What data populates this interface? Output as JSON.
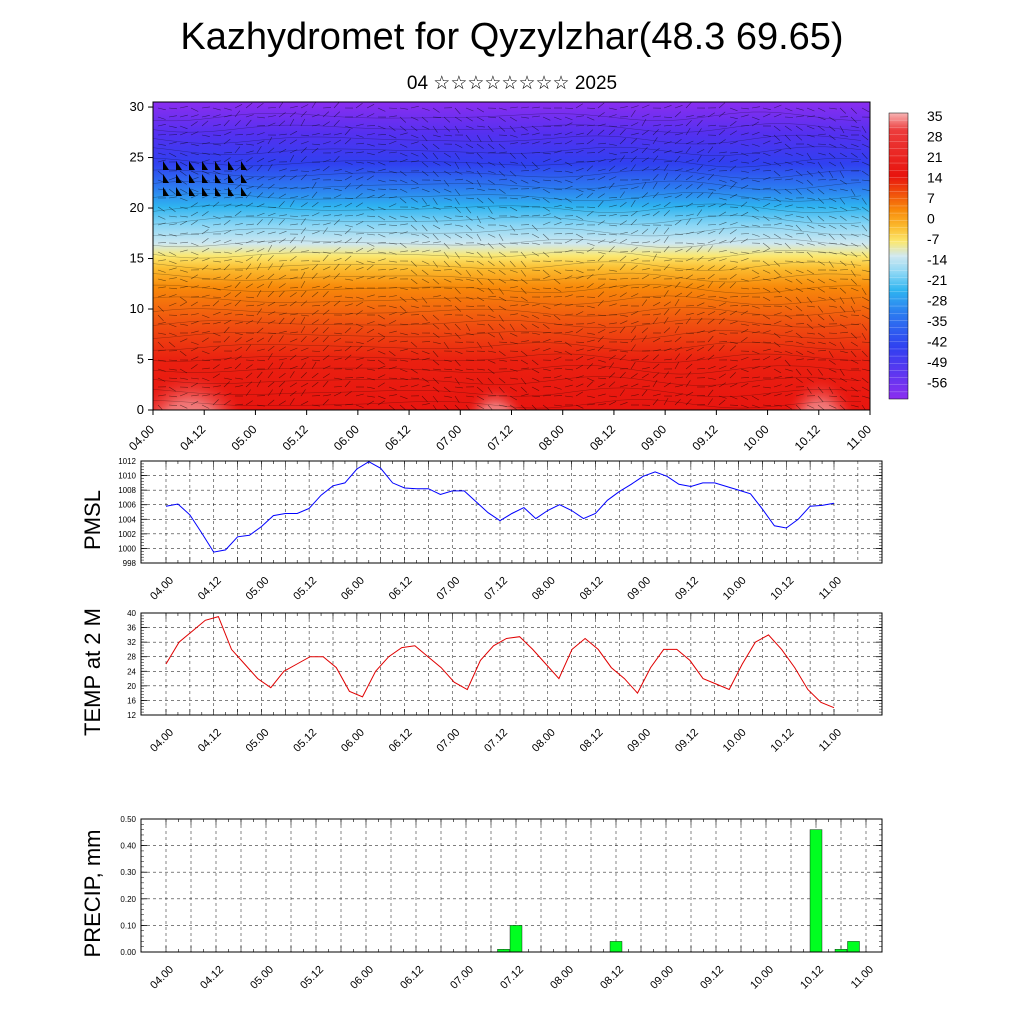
{
  "title": "Kazhydromet for Qyzylzhar(48.3 69.65)",
  "subtitle": "04 ☆☆☆☆☆☆☆☆ 2025",
  "time_ticks": [
    "04.00",
    "04.12",
    "05.00",
    "05.12",
    "06.00",
    "06.12",
    "07.00",
    "07.12",
    "08.00",
    "08.12",
    "09.00",
    "09.12",
    "10.00",
    "10.12",
    "11.00"
  ],
  "chart_data": [
    {
      "type": "heatmap",
      "name": "temperature cross-section with wind barbs",
      "xticks": [
        "04.00",
        "04.12",
        "05.00",
        "05.12",
        "06.00",
        "06.12",
        "07.00",
        "07.12",
        "08.00",
        "08.12",
        "09.00",
        "09.12",
        "10.00",
        "10.12",
        "11.00"
      ],
      "yticks": [
        0,
        5,
        10,
        15,
        20,
        25,
        30
      ],
      "ylim": [
        0,
        30.5
      ],
      "colorbar_labels": [
        "35",
        "28",
        "21",
        "14",
        "7",
        "0",
        "-7",
        "-14",
        "-21",
        "-28",
        "-35",
        "-42",
        "-49",
        "-56"
      ],
      "colors": {
        "hot": "#f7b5b5",
        "red": "#e8140e",
        "orange": "#f88a0a",
        "yellow": "#fbe870",
        "cyan": "#2fb4f0",
        "blue": "#3040f0",
        "violet": "#8b2ef0"
      }
    },
    {
      "type": "line",
      "ylabel": "PMSL",
      "ylim": [
        998,
        1012
      ],
      "yticks": [
        "998",
        "1000",
        "1002",
        "1004",
        "1006",
        "1008",
        "1010",
        "1012"
      ],
      "color": "#0000ff",
      "values": [
        1005.8,
        1006.1,
        1004.6,
        1002.1,
        999.5,
        999.8,
        1001.6,
        1001.8,
        1003.0,
        1004.5,
        1004.8,
        1004.8,
        1005.5,
        1007.3,
        1008.6,
        1009.0,
        1010.9,
        1011.9,
        1011.0,
        1009.0,
        1008.3,
        1008.2,
        1008.2,
        1007.4,
        1007.9,
        1007.9,
        1006.4,
        1004.9,
        1003.8,
        1004.8,
        1005.6,
        1004.1,
        1005.2,
        1006.0,
        1005.2,
        1004.1,
        1004.8,
        1006.6,
        1007.8,
        1008.8,
        1009.9,
        1010.5,
        1009.9,
        1008.8,
        1008.5,
        1009.0,
        1009.0,
        1008.5,
        1008.0,
        1007.5,
        1005.4,
        1003.1,
        1002.8,
        1004.0,
        1005.8,
        1005.9,
        1006.2
      ]
    },
    {
      "type": "line",
      "ylabel": "TEMP at 2 M",
      "ylim": [
        12,
        40
      ],
      "yticks": [
        "12",
        "16",
        "20",
        "24",
        "28",
        "32",
        "36",
        "40"
      ],
      "color": "#e00000",
      "values": [
        26,
        32,
        35,
        38,
        39,
        30,
        26,
        22,
        19.5,
        24,
        26,
        28,
        28,
        25,
        18.5,
        17,
        24,
        28,
        30.5,
        31,
        28,
        25,
        21,
        19,
        27,
        31,
        33,
        33.5,
        30,
        26,
        22,
        30,
        33,
        30,
        25,
        22,
        18,
        25,
        30,
        30,
        27,
        22,
        20.5,
        19,
        26,
        32,
        34,
        30,
        25,
        19,
        15.5,
        14
      ]
    },
    {
      "type": "bar",
      "ylabel": "PRECIP, mm",
      "ylim": [
        0,
        0.5
      ],
      "yticks": [
        "0.00",
        "0.10",
        "0.20",
        "0.30",
        "0.40",
        "0.50"
      ],
      "color": "#00ff20",
      "bars": [
        {
          "t": 7.375,
          "value": 0.01
        },
        {
          "t": 7.5,
          "value": 0.1
        },
        {
          "t": 8.5,
          "value": 0.04
        },
        {
          "t": 10.5,
          "value": 0.46
        },
        {
          "t": 10.75,
          "value": 0.01
        },
        {
          "t": 10.875,
          "value": 0.04
        }
      ]
    }
  ]
}
